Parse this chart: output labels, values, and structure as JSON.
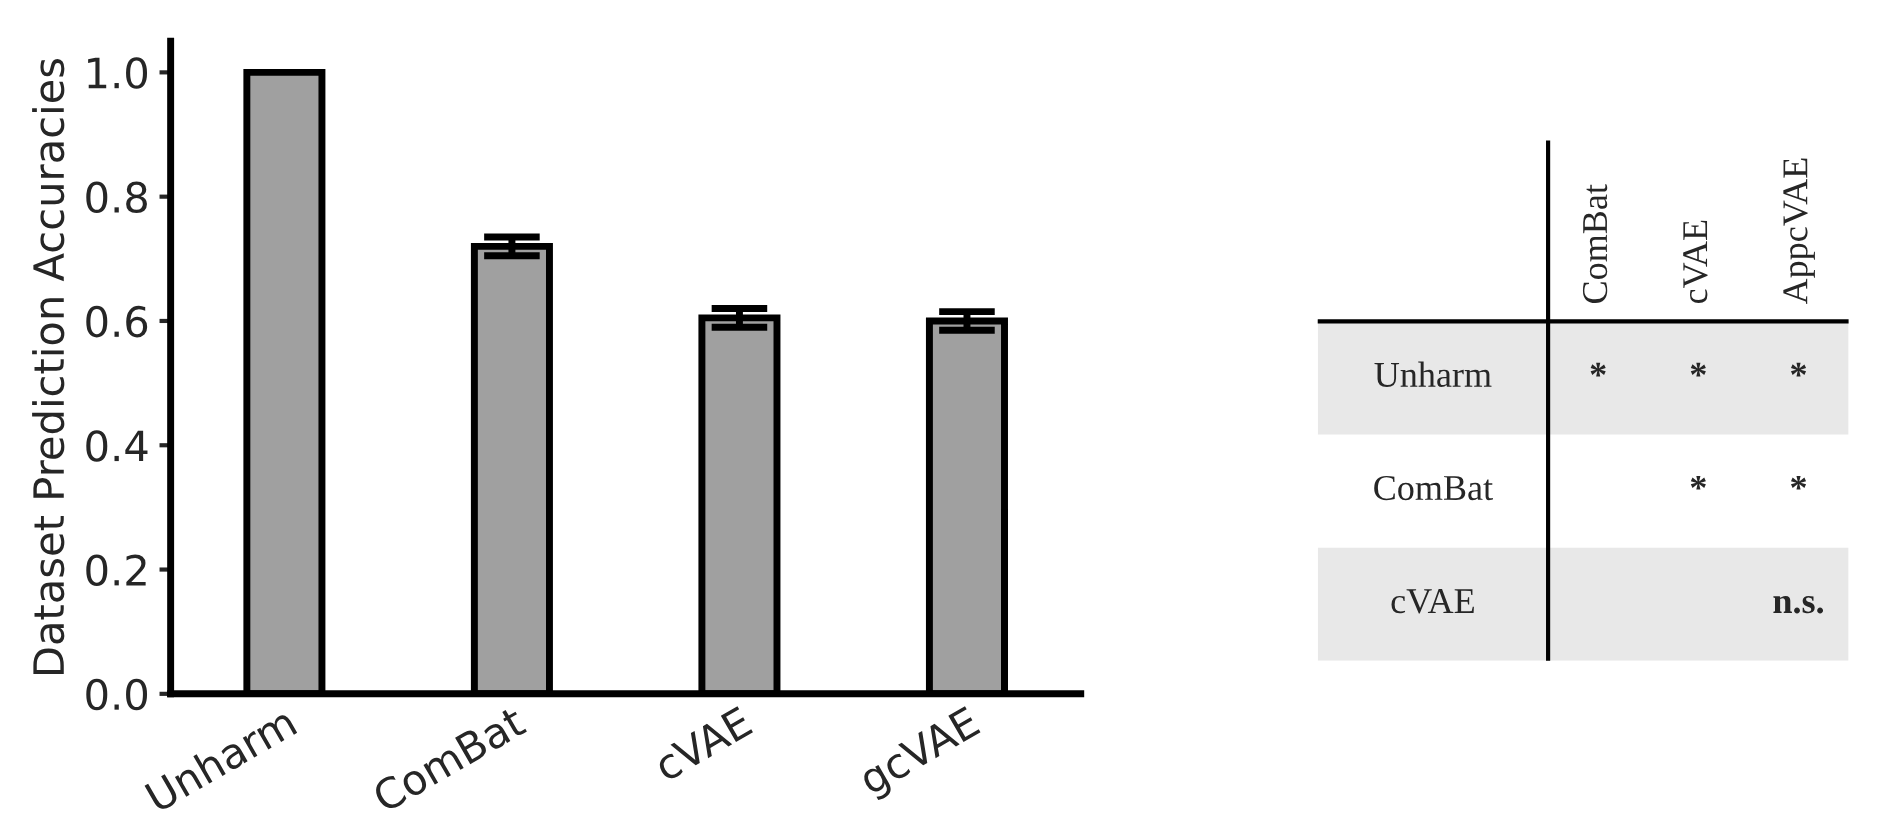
{
  "chart_data": [
    {
      "type": "bar",
      "ylabel": "Dataset Prediction Accuracies",
      "categories": [
        "Unharm",
        "ComBat",
        "cVAE",
        "gcVAE"
      ],
      "values": [
        1.0,
        0.72,
        0.605,
        0.6
      ],
      "errors": [
        null,
        0.015,
        0.015,
        0.015
      ],
      "color": "#a0a0a0",
      "ylim": [
        0,
        1.05
      ],
      "yticks": [
        {
          "value": 0,
          "label": "0.0"
        },
        0.2,
        0.4,
        0.6,
        0.8,
        {
          "value": 1,
          "label": "1.0"
        }
      ],
      "grid": false
    },
    {
      "type": "other",
      "categories": [
        "ComBat",
        "cVAE",
        "AppcVAE"
      ],
      "y_categories": [
        "Unharm",
        "ComBat",
        "cVAE"
      ],
      "cell_labels": [
        [
          "*",
          "*",
          "*"
        ],
        [
          null,
          "*",
          "*"
        ],
        [
          null,
          null,
          "n.s."
        ]
      ]
    }
  ]
}
